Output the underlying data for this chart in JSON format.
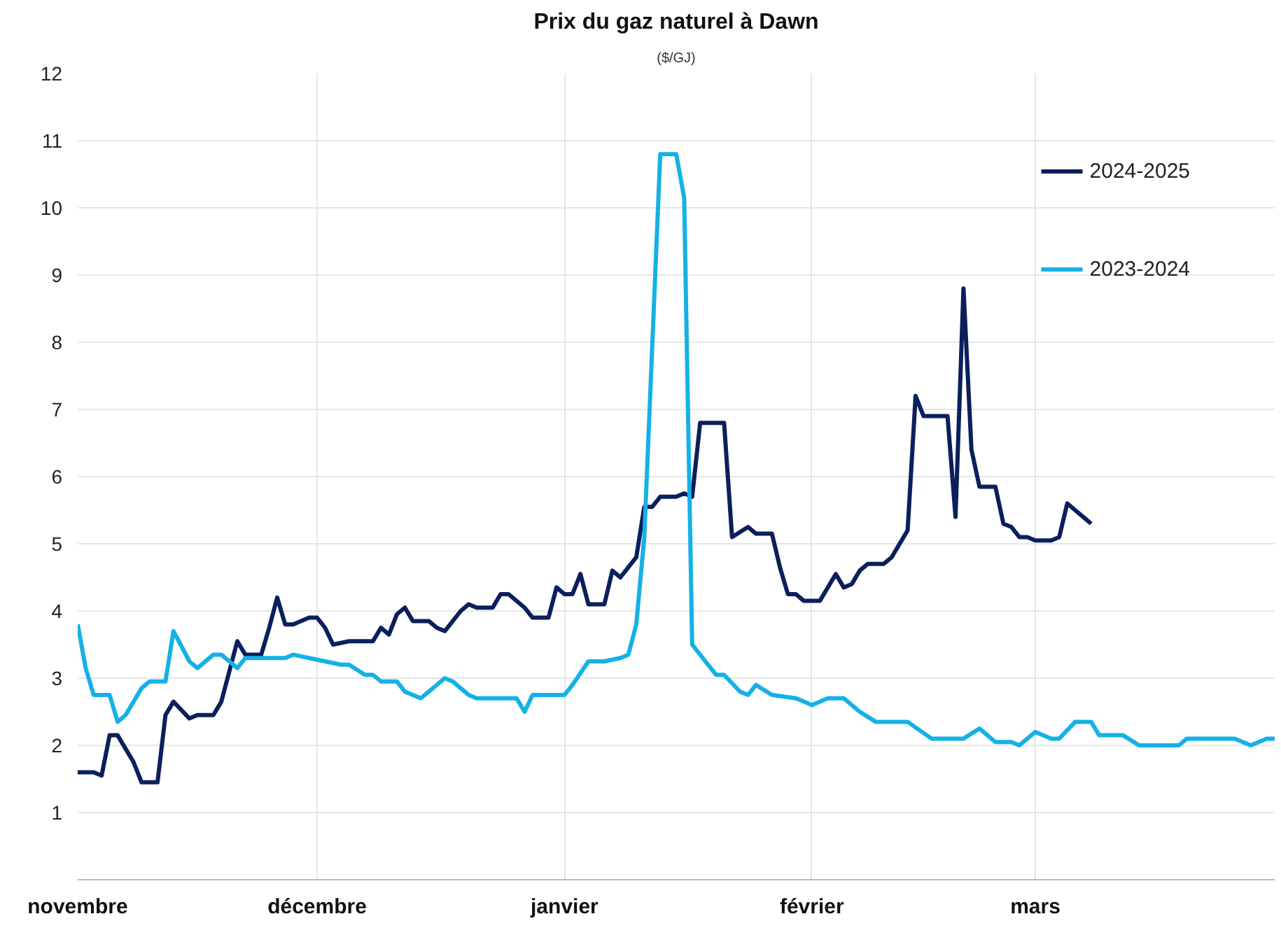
{
  "chart_data": {
    "type": "line",
    "title": "Prix du gaz naturel à Dawn",
    "subtitle": "($/GJ)",
    "xlim": [
      "2024-11-01",
      "2025-03-31"
    ],
    "xticks": [
      {
        "value": "2024-11-01",
        "label": "novembre"
      },
      {
        "value": "2024-12-01",
        "label": "décembre"
      },
      {
        "value": "2025-01-01",
        "label": "janvier"
      },
      {
        "value": "2025-02-01",
        "label": "février"
      },
      {
        "value": "2025-03-01",
        "label": "mars"
      }
    ],
    "ylim": [
      0,
      12
    ],
    "yticks": [
      1,
      2,
      3,
      4,
      5,
      6,
      7,
      8,
      9,
      10,
      11,
      12
    ],
    "grid": true,
    "legend": "top right",
    "marker": "none",
    "line_style": "solid",
    "series": [
      {
        "name": "2024-2025",
        "color": "#0b1f5c",
        "x": [
          "2024-11-01",
          "2024-11-03",
          "2024-11-04",
          "2024-11-05",
          "2024-11-06",
          "2024-11-08",
          "2024-11-09",
          "2024-11-11",
          "2024-11-12",
          "2024-11-13",
          "2024-11-15",
          "2024-11-16",
          "2024-11-18",
          "2024-11-19",
          "2024-11-21",
          "2024-11-22",
          "2024-11-24",
          "2024-11-25",
          "2024-11-26",
          "2024-11-27",
          "2024-11-28",
          "2024-11-30",
          "2024-12-01",
          "2024-12-02",
          "2024-12-03",
          "2024-12-05",
          "2024-12-08",
          "2024-12-09",
          "2024-12-10",
          "2024-12-11",
          "2024-12-12",
          "2024-12-13",
          "2024-12-15",
          "2024-12-16",
          "2024-12-17",
          "2024-12-19",
          "2024-12-20",
          "2024-12-21",
          "2024-12-23",
          "2024-12-24",
          "2024-12-25",
          "2024-12-27",
          "2024-12-28",
          "2024-12-30",
          "2024-12-31",
          "2025-01-01",
          "2025-01-02",
          "2025-01-03",
          "2025-01-04",
          "2025-01-06",
          "2025-01-07",
          "2025-01-08",
          "2025-01-09",
          "2025-01-10",
          "2025-01-11",
          "2025-01-12",
          "2025-01-13",
          "2025-01-15",
          "2025-01-16",
          "2025-01-17",
          "2025-01-18",
          "2025-01-21",
          "2025-01-22",
          "2025-01-24",
          "2025-01-25",
          "2025-01-27",
          "2025-01-28",
          "2025-01-29",
          "2025-01-30",
          "2025-01-31",
          "2025-02-02",
          "2025-02-04",
          "2025-02-05",
          "2025-02-06",
          "2025-02-07",
          "2025-02-08",
          "2025-02-10",
          "2025-02-11",
          "2025-02-13",
          "2025-02-14",
          "2025-02-15",
          "2025-02-18",
          "2025-02-19",
          "2025-02-20",
          "2025-02-21",
          "2025-02-22",
          "2025-02-24",
          "2025-02-25",
          "2025-02-26",
          "2025-02-27",
          "2025-02-28",
          "2025-03-01",
          "2025-03-03",
          "2025-03-04",
          "2025-03-05",
          "2025-03-06",
          "2025-03-07",
          "2025-03-08"
        ],
        "values": [
          1.6,
          1.6,
          1.55,
          2.15,
          2.15,
          1.75,
          1.45,
          1.45,
          2.45,
          2.65,
          2.4,
          2.45,
          2.45,
          2.65,
          3.55,
          3.35,
          3.35,
          3.75,
          4.2,
          3.8,
          3.8,
          3.9,
          3.9,
          3.75,
          3.5,
          3.55,
          3.55,
          3.75,
          3.65,
          3.95,
          4.05,
          3.85,
          3.85,
          3.75,
          3.7,
          4.0,
          4.1,
          4.05,
          4.05,
          4.25,
          4.25,
          4.05,
          3.9,
          3.9,
          4.35,
          4.25,
          4.25,
          4.55,
          4.1,
          4.1,
          4.6,
          4.5,
          4.65,
          4.8,
          5.55,
          5.55,
          5.7,
          5.7,
          5.75,
          5.7,
          6.8,
          6.8,
          5.1,
          5.25,
          5.15,
          5.15,
          4.65,
          4.25,
          4.25,
          4.15,
          4.15,
          4.55,
          4.35,
          4.4,
          4.6,
          4.7,
          4.7,
          4.8,
          5.2,
          7.2,
          6.9,
          6.9,
          5.4,
          8.8,
          6.4,
          5.85,
          5.85,
          5.3,
          5.25,
          5.1,
          5.1,
          5.05,
          5.05,
          5.1,
          5.6,
          5.5,
          5.4,
          5.3
        ]
      },
      {
        "name": "2023-2024",
        "color": "#14b1e7",
        "x": [
          "2024-11-01",
          "2024-11-02",
          "2024-11-03",
          "2024-11-05",
          "2024-11-06",
          "2024-11-07",
          "2024-11-09",
          "2024-11-10",
          "2024-11-12",
          "2024-11-13",
          "2024-11-15",
          "2024-11-16",
          "2024-11-18",
          "2024-11-19",
          "2024-11-20",
          "2024-11-21",
          "2024-11-22",
          "2024-11-27",
          "2024-11-28",
          "2024-11-30",
          "2024-12-04",
          "2024-12-05",
          "2024-12-07",
          "2024-12-08",
          "2024-12-09",
          "2024-12-11",
          "2024-12-12",
          "2024-12-13",
          "2024-12-14",
          "2024-12-15",
          "2024-12-17",
          "2024-12-18",
          "2024-12-19",
          "2024-12-20",
          "2024-12-21",
          "2024-12-26",
          "2024-12-27",
          "2024-12-28",
          "2025-01-01",
          "2025-01-02",
          "2025-01-04",
          "2025-01-06",
          "2025-01-08",
          "2025-01-09",
          "2025-01-10",
          "2025-01-11",
          "2025-01-13",
          "2025-01-15",
          "2025-01-16",
          "2025-01-17",
          "2025-01-19",
          "2025-01-20",
          "2025-01-21",
          "2025-01-23",
          "2025-01-24",
          "2025-01-25",
          "2025-01-27",
          "2025-01-30",
          "2025-01-31",
          "2025-02-01",
          "2025-02-03",
          "2025-02-05",
          "2025-02-07",
          "2025-02-09",
          "2025-02-13",
          "2025-02-16",
          "2025-02-20",
          "2025-02-22",
          "2025-02-24",
          "2025-02-26",
          "2025-02-27",
          "2025-03-01",
          "2025-03-03",
          "2025-03-04",
          "2025-03-06",
          "2025-03-07",
          "2025-03-08",
          "2025-03-09",
          "2025-03-12",
          "2025-03-14",
          "2025-03-15",
          "2025-03-17",
          "2025-03-19",
          "2025-03-20",
          "2025-03-23",
          "2025-03-24",
          "2025-03-26",
          "2025-03-28",
          "2025-03-30",
          "2025-03-31"
        ],
        "values": [
          3.8,
          3.15,
          2.75,
          2.75,
          2.35,
          2.45,
          2.85,
          2.95,
          2.95,
          3.7,
          3.25,
          3.15,
          3.35,
          3.35,
          3.25,
          3.15,
          3.3,
          3.3,
          3.35,
          3.3,
          3.2,
          3.2,
          3.05,
          3.05,
          2.95,
          2.95,
          2.8,
          2.75,
          2.7,
          2.8,
          3.0,
          2.95,
          2.85,
          2.75,
          2.7,
          2.7,
          2.5,
          2.75,
          2.75,
          2.9,
          3.25,
          3.25,
          3.3,
          3.35,
          3.8,
          5.1,
          10.8,
          10.8,
          10.15,
          3.5,
          3.2,
          3.05,
          3.05,
          2.8,
          2.75,
          2.9,
          2.75,
          2.7,
          2.65,
          2.6,
          2.7,
          2.7,
          2.5,
          2.35,
          2.35,
          2.1,
          2.1,
          2.25,
          2.05,
          2.05,
          2.0,
          2.2,
          2.1,
          2.1,
          2.35,
          2.35,
          2.35,
          2.15,
          2.15,
          2.0,
          2.0,
          2.0,
          2.0,
          2.1,
          2.1,
          2.1,
          2.1,
          2.0,
          2.1,
          2.1
        ]
      }
    ]
  }
}
